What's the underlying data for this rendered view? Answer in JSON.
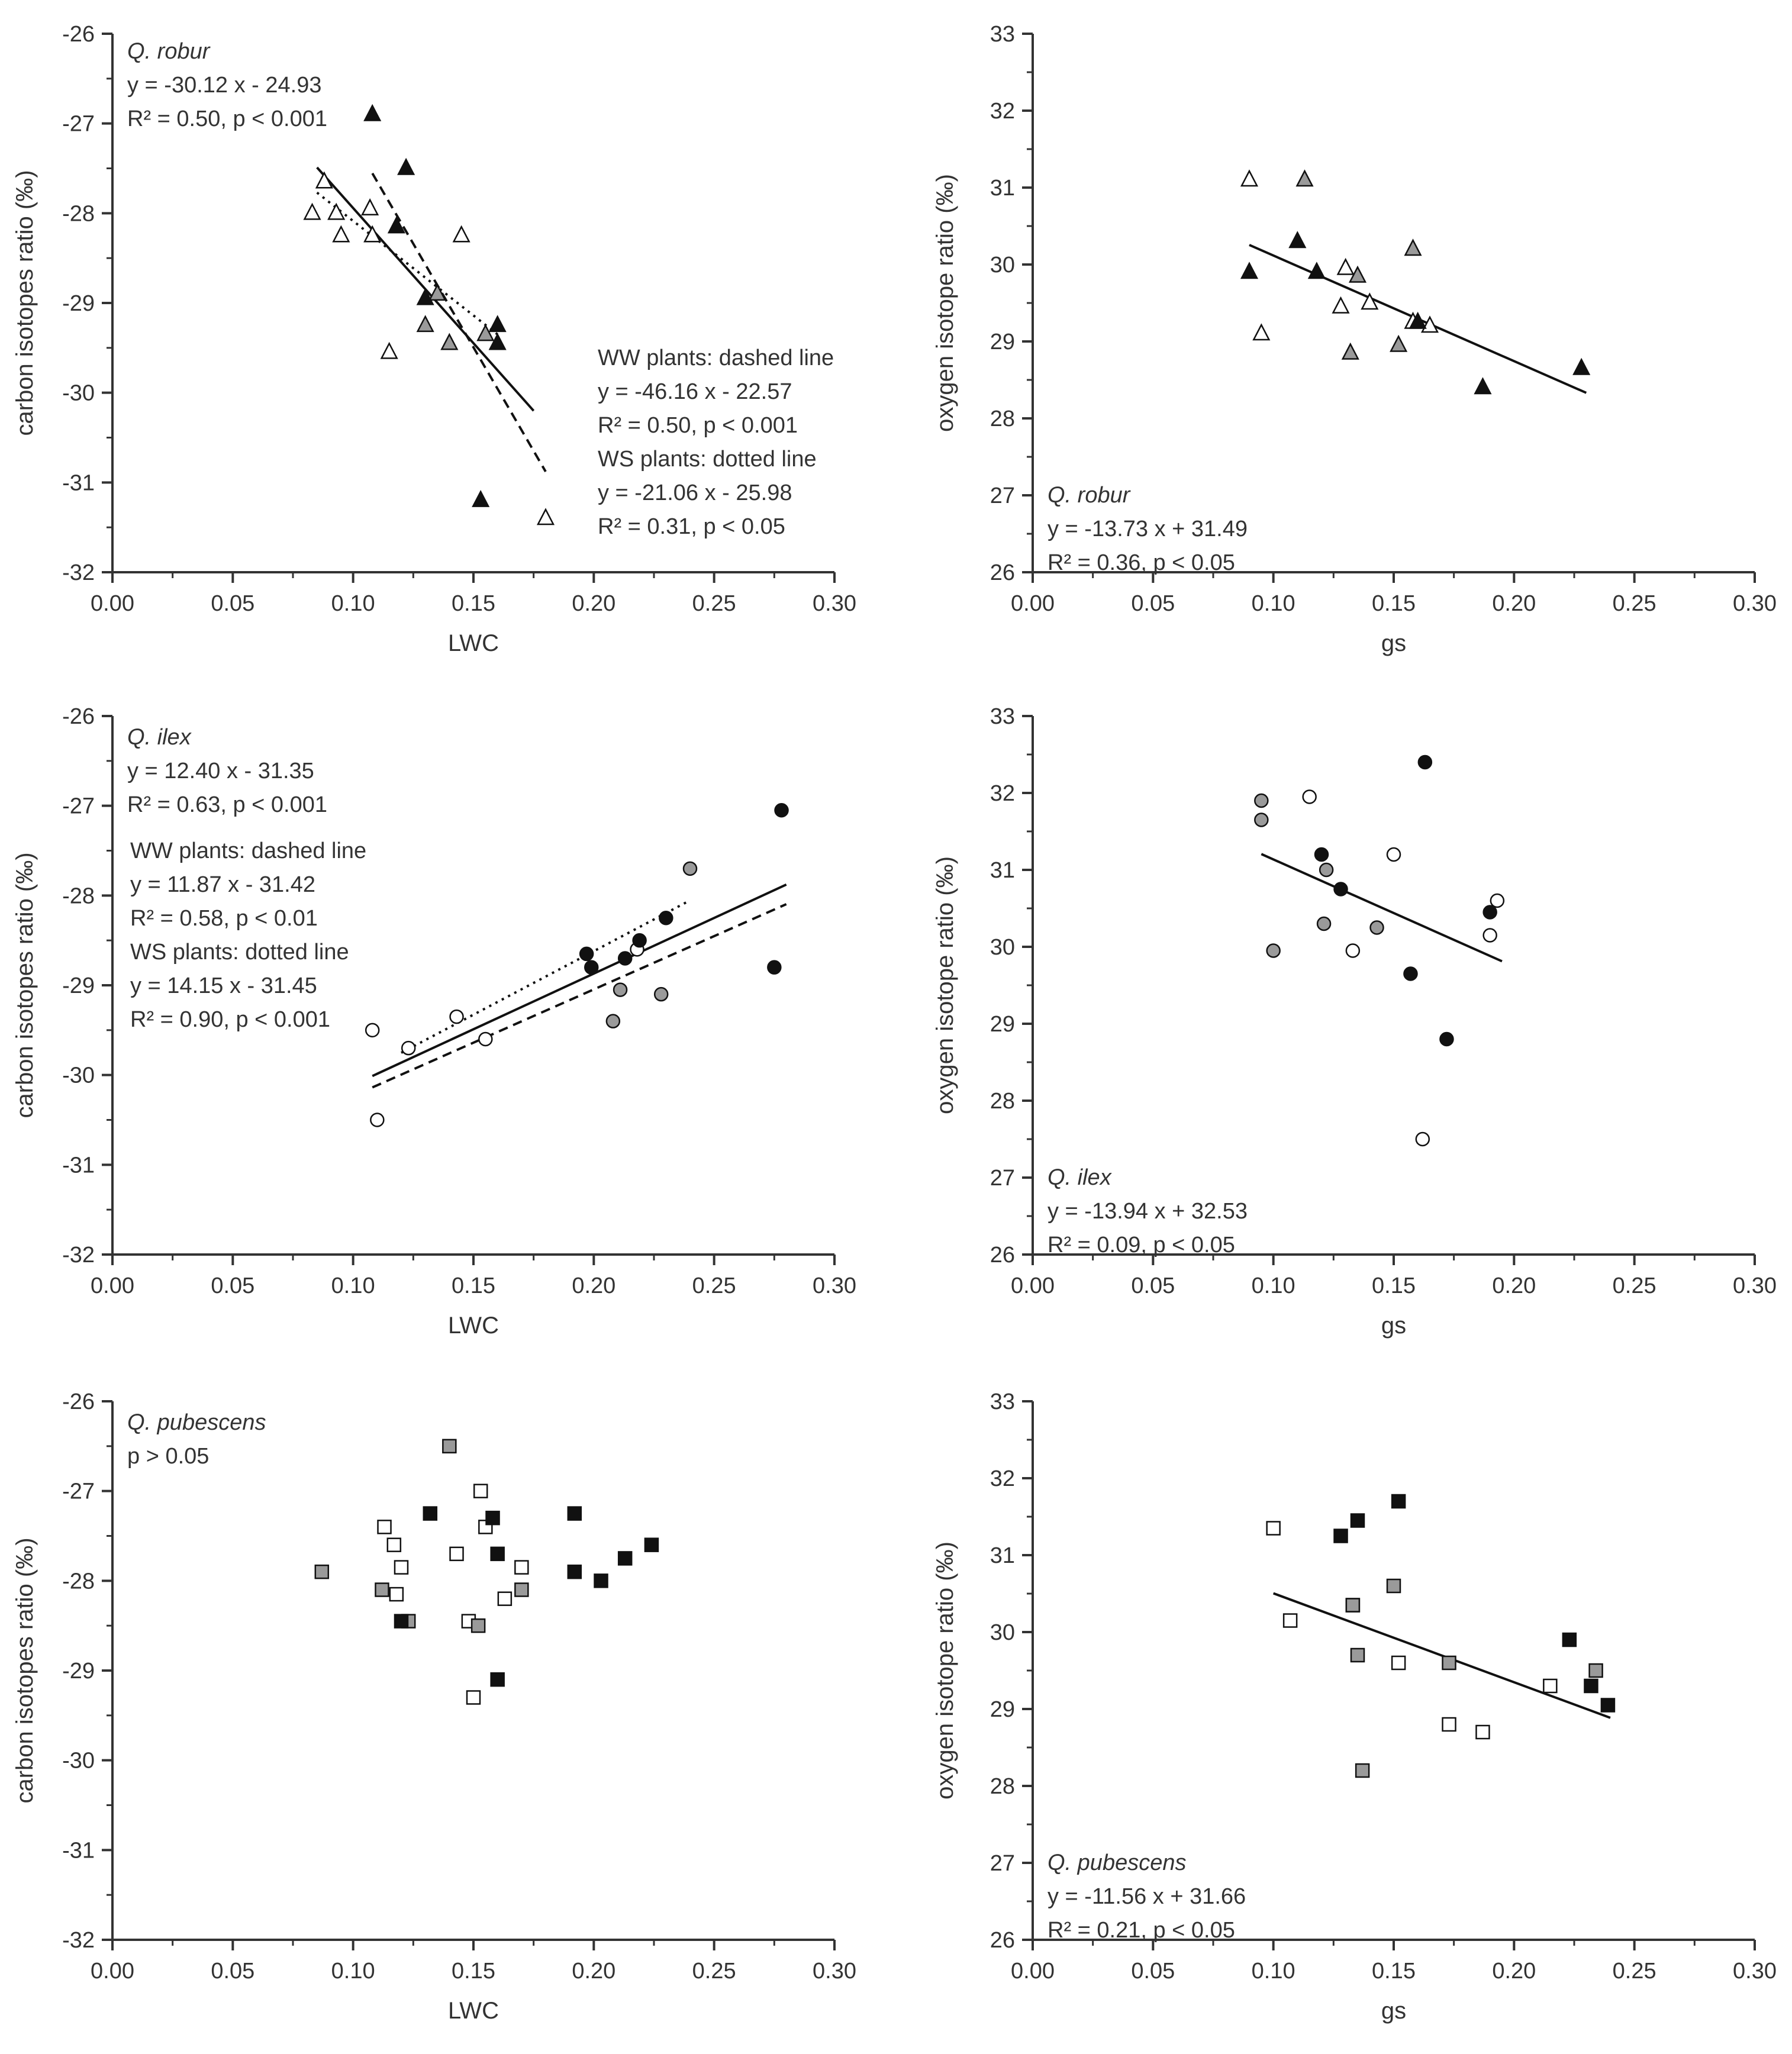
{
  "colors": {
    "white": "#ffffff",
    "gray": "#9a9a9a",
    "black": "#111111",
    "axis": "#333333"
  },
  "chart_data": [
    {
      "type": "scatter",
      "panel": "Q. robur – carbon vs LWC",
      "xlabel": "LWC",
      "ylabel": "carbon isotopes ratio (‰)",
      "xlim": [
        0,
        0.3
      ],
      "ylim": [
        -32,
        -26
      ],
      "xticks": [
        "0.00",
        "0.05",
        "0.10",
        "0.15",
        "0.20",
        "0.25",
        "0.30"
      ],
      "yticks": [
        "-32",
        "-31",
        "-30",
        "-29",
        "-28",
        "-27",
        "-26"
      ],
      "marker": "triangle",
      "annotations": [
        {
          "text": "Q. robur",
          "italic": true
        },
        {
          "text": "y = -30.12 x - 24.93"
        },
        {
          "text": "R² = 0.50, p < 0.001"
        },
        {
          "text": "WW plants: dashed line"
        },
        {
          "text": "y = -46.16 x - 22.57"
        },
        {
          "text": "R² = 0.50, p < 0.001"
        },
        {
          "text": "WS plants: dotted line"
        },
        {
          "text": "y = -21.06 x - 25.98"
        },
        {
          "text": "R² = 0.31, p < 0.05"
        }
      ],
      "lines": [
        {
          "style": "solid",
          "slope": -30.12,
          "intercept": -24.93,
          "x_range": [
            0.085,
            0.175
          ]
        },
        {
          "style": "dashed",
          "slope": -46.16,
          "intercept": -22.57,
          "x_range": [
            0.108,
            0.18
          ]
        },
        {
          "style": "dotted",
          "slope": -21.06,
          "intercept": -25.98,
          "x_range": [
            0.085,
            0.16
          ]
        }
      ],
      "series": [
        {
          "name": "white",
          "points": [
            [
              0.083,
              -28.0
            ],
            [
              0.088,
              -27.65
            ],
            [
              0.093,
              -28.0
            ],
            [
              0.095,
              -28.25
            ],
            [
              0.107,
              -27.95
            ],
            [
              0.108,
              -28.25
            ],
            [
              0.115,
              -29.55
            ],
            [
              0.145,
              -28.25
            ],
            [
              0.18,
              -31.4
            ]
          ]
        },
        {
          "name": "gray",
          "points": [
            [
              0.13,
              -29.25
            ],
            [
              0.135,
              -28.9
            ],
            [
              0.14,
              -29.45
            ],
            [
              0.155,
              -29.35
            ]
          ]
        },
        {
          "name": "black",
          "points": [
            [
              0.108,
              -26.9
            ],
            [
              0.118,
              -28.15
            ],
            [
              0.122,
              -27.5
            ],
            [
              0.13,
              -28.95
            ],
            [
              0.153,
              -31.2
            ],
            [
              0.16,
              -29.25
            ],
            [
              0.16,
              -29.45
            ]
          ]
        }
      ]
    },
    {
      "type": "scatter",
      "panel": "Q. robur – oxygen vs gs",
      "xlabel": "gs",
      "ylabel": "oxygen isotope ratio (‰)",
      "xlim": [
        0,
        0.3
      ],
      "ylim": [
        26,
        33
      ],
      "xticks": [
        "0.00",
        "0.05",
        "0.10",
        "0.15",
        "0.20",
        "0.25",
        "0.30"
      ],
      "yticks": [
        "26",
        "27",
        "28",
        "29",
        "30",
        "31",
        "32",
        "33"
      ],
      "marker": "triangle",
      "annotations": [
        {
          "text": "Q. robur",
          "italic": true
        },
        {
          "text": "y = -13.73 x + 31.49"
        },
        {
          "text": "R² = 0.36, p < 0.05"
        }
      ],
      "lines": [
        {
          "style": "solid",
          "slope": -13.73,
          "intercept": 31.49,
          "x_range": [
            0.09,
            0.23
          ]
        }
      ],
      "series": [
        {
          "name": "white",
          "points": [
            [
              0.09,
              31.1
            ],
            [
              0.095,
              29.1
            ],
            [
              0.13,
              29.95
            ],
            [
              0.128,
              29.45
            ],
            [
              0.14,
              29.5
            ],
            [
              0.158,
              29.25
            ],
            [
              0.165,
              29.2
            ]
          ]
        },
        {
          "name": "gray",
          "points": [
            [
              0.113,
              31.1
            ],
            [
              0.135,
              29.85
            ],
            [
              0.132,
              28.85
            ],
            [
              0.152,
              28.95
            ],
            [
              0.158,
              30.2
            ]
          ]
        },
        {
          "name": "black",
          "points": [
            [
              0.09,
              29.9
            ],
            [
              0.11,
              30.3
            ],
            [
              0.118,
              29.9
            ],
            [
              0.16,
              29.25
            ],
            [
              0.187,
              28.4
            ],
            [
              0.228,
              28.65
            ]
          ]
        }
      ]
    },
    {
      "type": "scatter",
      "panel": "Q. ilex – carbon vs LWC",
      "xlabel": "LWC",
      "ylabel": "carbon isotopes ratio (‰)",
      "xlim": [
        0,
        0.3
      ],
      "ylim": [
        -32,
        -26
      ],
      "xticks": [
        "0.00",
        "0.05",
        "0.10",
        "0.15",
        "0.20",
        "0.25",
        "0.30"
      ],
      "yticks": [
        "-32",
        "-31",
        "-30",
        "-29",
        "-28",
        "-27",
        "-26"
      ],
      "marker": "circle",
      "annotations": [
        {
          "text": "Q. ilex",
          "italic": true
        },
        {
          "text": "y = 12.40 x - 31.35"
        },
        {
          "text": "R² = 0.63, p < 0.001"
        },
        {
          "text": "WW plants: dashed line"
        },
        {
          "text": "y = 11.87 x - 31.42"
        },
        {
          "text": "R² = 0.58, p < 0.01"
        },
        {
          "text": "WS plants: dotted line"
        },
        {
          "text": "y = 14.15 x - 31.45"
        },
        {
          "text": "R² = 0.90, p < 0.001"
        }
      ],
      "lines": [
        {
          "style": "solid",
          "slope": 12.4,
          "intercept": -31.35,
          "x_range": [
            0.108,
            0.28
          ]
        },
        {
          "style": "dashed",
          "slope": 11.87,
          "intercept": -31.42,
          "x_range": [
            0.108,
            0.28
          ]
        },
        {
          "style": "dotted",
          "slope": 14.15,
          "intercept": -31.45,
          "x_range": [
            0.12,
            0.24
          ]
        }
      ],
      "series": [
        {
          "name": "white",
          "points": [
            [
              0.108,
              -29.5
            ],
            [
              0.11,
              -30.5
            ],
            [
              0.123,
              -29.7
            ],
            [
              0.143,
              -29.35
            ],
            [
              0.155,
              -29.6
            ],
            [
              0.218,
              -28.6
            ]
          ]
        },
        {
          "name": "gray",
          "points": [
            [
              0.208,
              -29.4
            ],
            [
              0.211,
              -29.05
            ],
            [
              0.228,
              -29.1
            ],
            [
              0.24,
              -27.7
            ]
          ]
        },
        {
          "name": "black",
          "points": [
            [
              0.197,
              -28.65
            ],
            [
              0.199,
              -28.8
            ],
            [
              0.213,
              -28.7
            ],
            [
              0.219,
              -28.5
            ],
            [
              0.23,
              -28.25
            ],
            [
              0.275,
              -28.8
            ],
            [
              0.278,
              -27.05
            ]
          ]
        }
      ]
    },
    {
      "type": "scatter",
      "panel": "Q. ilex – oxygen vs gs",
      "xlabel": "gs",
      "ylabel": "oxygen isotope ratio (‰)",
      "xlim": [
        0,
        0.3
      ],
      "ylim": [
        26,
        33
      ],
      "xticks": [
        "0.00",
        "0.05",
        "0.10",
        "0.15",
        "0.20",
        "0.25",
        "0.30"
      ],
      "yticks": [
        "26",
        "27",
        "28",
        "29",
        "30",
        "31",
        "32",
        "33"
      ],
      "marker": "circle",
      "annotations": [
        {
          "text": "Q. ilex",
          "italic": true
        },
        {
          "text": "y = -13.94 x + 32.53"
        },
        {
          "text": "R² = 0.09, p < 0.05"
        }
      ],
      "lines": [
        {
          "style": "solid",
          "slope": -13.94,
          "intercept": 32.53,
          "x_range": [
            0.095,
            0.195
          ]
        }
      ],
      "series": [
        {
          "name": "white",
          "points": [
            [
              0.115,
              31.95
            ],
            [
              0.15,
              31.2
            ],
            [
              0.133,
              29.95
            ],
            [
              0.162,
              27.5
            ],
            [
              0.19,
              30.15
            ],
            [
              0.193,
              30.6
            ]
          ]
        },
        {
          "name": "gray",
          "points": [
            [
              0.095,
              31.9
            ],
            [
              0.095,
              31.65
            ],
            [
              0.1,
              29.95
            ],
            [
              0.122,
              31.0
            ],
            [
              0.121,
              30.3
            ],
            [
              0.143,
              30.25
            ]
          ]
        },
        {
          "name": "black",
          "points": [
            [
              0.12,
              31.2
            ],
            [
              0.128,
              30.75
            ],
            [
              0.157,
              29.65
            ],
            [
              0.163,
              32.4
            ],
            [
              0.172,
              28.8
            ],
            [
              0.19,
              30.45
            ]
          ]
        }
      ]
    },
    {
      "type": "scatter",
      "panel": "Q. pubescens – carbon vs LWC",
      "xlabel": "LWC",
      "ylabel": "carbon isotopes ratio (‰)",
      "xlim": [
        0,
        0.3
      ],
      "ylim": [
        -32,
        -26
      ],
      "xticks": [
        "0.00",
        "0.05",
        "0.10",
        "0.15",
        "0.20",
        "0.25",
        "0.30"
      ],
      "yticks": [
        "-32",
        "-31",
        "-30",
        "-29",
        "-28",
        "-27",
        "-26"
      ],
      "marker": "square",
      "annotations": [
        {
          "text": "Q. pubescens",
          "italic": true
        },
        {
          "text": "p > 0.05"
        }
      ],
      "lines": [],
      "series": [
        {
          "name": "white",
          "points": [
            [
              0.113,
              -27.4
            ],
            [
              0.117,
              -27.6
            ],
            [
              0.118,
              -28.15
            ],
            [
              0.12,
              -27.85
            ],
            [
              0.143,
              -27.7
            ],
            [
              0.148,
              -28.45
            ],
            [
              0.15,
              -29.3
            ],
            [
              0.153,
              -27.0
            ],
            [
              0.155,
              -27.4
            ],
            [
              0.163,
              -28.2
            ],
            [
              0.17,
              -27.85
            ]
          ]
        },
        {
          "name": "gray",
          "points": [
            [
              0.087,
              -27.9
            ],
            [
              0.112,
              -28.1
            ],
            [
              0.123,
              -28.45
            ],
            [
              0.14,
              -26.5
            ],
            [
              0.152,
              -28.5
            ],
            [
              0.17,
              -28.1
            ]
          ]
        },
        {
          "name": "black",
          "points": [
            [
              0.12,
              -28.45
            ],
            [
              0.132,
              -27.25
            ],
            [
              0.158,
              -27.3
            ],
            [
              0.16,
              -29.1
            ],
            [
              0.16,
              -27.7
            ],
            [
              0.192,
              -27.25
            ],
            [
              0.192,
              -27.9
            ],
            [
              0.203,
              -28.0
            ],
            [
              0.213,
              -27.75
            ],
            [
              0.224,
              -27.6
            ]
          ]
        }
      ]
    },
    {
      "type": "scatter",
      "panel": "Q. pubescens – oxygen vs gs",
      "xlabel": "gs",
      "ylabel": "oxygen isotope ratio (‰)",
      "xlim": [
        0,
        0.3
      ],
      "ylim": [
        26,
        33
      ],
      "xticks": [
        "0.00",
        "0.05",
        "0.10",
        "0.15",
        "0.20",
        "0.25",
        "0.30"
      ],
      "yticks": [
        "26",
        "27",
        "28",
        "29",
        "30",
        "31",
        "32",
        "33"
      ],
      "marker": "square",
      "annotations": [
        {
          "text": "Q. pubescens",
          "italic": true
        },
        {
          "text": "y = -11.56 x + 31.66"
        },
        {
          "text": "R² = 0.21, p < 0.05"
        }
      ],
      "lines": [
        {
          "style": "solid",
          "slope": -11.56,
          "intercept": 31.66,
          "x_range": [
            0.1,
            0.24
          ]
        }
      ],
      "series": [
        {
          "name": "white",
          "points": [
            [
              0.1,
              31.35
            ],
            [
              0.107,
              30.15
            ],
            [
              0.133,
              30.35
            ],
            [
              0.152,
              29.6
            ],
            [
              0.173,
              28.8
            ],
            [
              0.187,
              28.7
            ],
            [
              0.215,
              29.3
            ]
          ]
        },
        {
          "name": "gray",
          "points": [
            [
              0.133,
              30.35
            ],
            [
              0.135,
              29.7
            ],
            [
              0.137,
              28.2
            ],
            [
              0.15,
              30.6
            ],
            [
              0.173,
              29.6
            ],
            [
              0.234,
              29.5
            ]
          ]
        },
        {
          "name": "black",
          "points": [
            [
              0.128,
              31.25
            ],
            [
              0.135,
              31.45
            ],
            [
              0.152,
              31.7
            ],
            [
              0.223,
              29.9
            ],
            [
              0.232,
              29.3
            ],
            [
              0.239,
              29.05
            ]
          ]
        }
      ]
    }
  ]
}
